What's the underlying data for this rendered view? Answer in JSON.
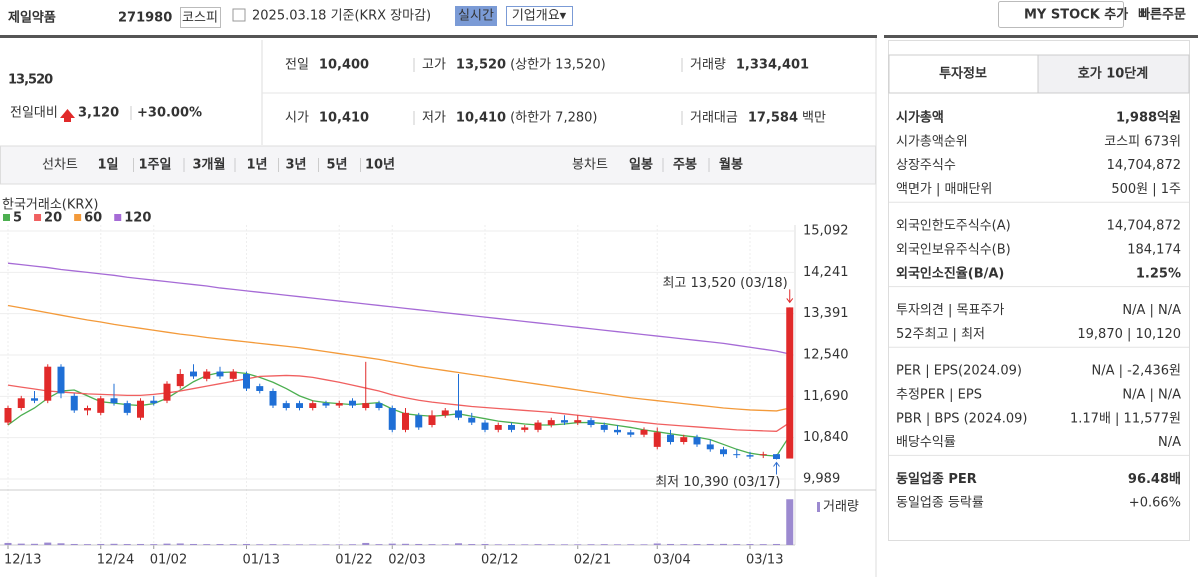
{
  "header": {
    "name": "제일약품",
    "code": "271980",
    "market": "코스피",
    "date": "2025.03.18 기준(KRX 장마감)",
    "realtime": "실시간",
    "overview": "기업개요▾",
    "mystock": "MY STOCK 추가",
    "quick": "빠른주문"
  },
  "quote": {
    "price": "13,520",
    "change_label": "전일대비",
    "change": "3,120",
    "rate": "+30.00%",
    "cells": [
      {
        "label": "전일",
        "value": "10,400"
      },
      {
        "label": "고가",
        "value": "13,520",
        "extra": "(상한가 13,520)",
        "color": "#e12a2a"
      },
      {
        "label": "거래량",
        "value": "1,334,401"
      },
      {
        "label": "시가",
        "value": "10,410",
        "color": "#e12a2a"
      },
      {
        "label": "저가",
        "value": "10,410",
        "extra": "(하한가 7,280)",
        "color": "#e12a2a"
      },
      {
        "label": "거래대금",
        "value": "17,584",
        "extra": "백만"
      }
    ]
  },
  "periods": {
    "label": "선차트",
    "items": [
      "1일",
      "1주일",
      "3개월",
      "1년",
      "3년",
      "5년",
      "10년"
    ]
  },
  "candles": {
    "label": "봉차트",
    "items": [
      "일봉",
      "주봉",
      "월봉"
    ],
    "selected": 0
  },
  "chart_data": {
    "type": "candlestick",
    "source": "한국거래소(KRX)",
    "grid": true,
    "up_color": "#e12a2a",
    "down_color": "#1f6fd6",
    "categories": [
      "12/13",
      null,
      null,
      null,
      null,
      null,
      null,
      "12/24",
      null,
      null,
      null,
      "01/02",
      null,
      null,
      null,
      null,
      null,
      null,
      "01/13",
      null,
      null,
      null,
      null,
      null,
      null,
      "01/22",
      null,
      null,
      null,
      "02/03",
      null,
      null,
      null,
      null,
      null,
      null,
      "02/12",
      null,
      null,
      null,
      null,
      null,
      null,
      "02/21",
      null,
      null,
      null,
      null,
      null,
      "03/04",
      null,
      null,
      null,
      null,
      null,
      null,
      "03/13",
      null,
      null,
      null
    ],
    "open": [
      11150,
      11450,
      11650,
      11600,
      12300,
      11700,
      11400,
      11350,
      11650,
      11550,
      11250,
      11600,
      11600,
      11900,
      12200,
      12050,
      12200,
      12050,
      12150,
      11900,
      11800,
      11550,
      11550,
      11450,
      11550,
      11500,
      11600,
      11450,
      11550,
      11450,
      11000,
      11300,
      11100,
      11300,
      11400,
      11250,
      11150,
      11000,
      11100,
      11000,
      11000,
      11100,
      11200,
      11150,
      11200,
      11100,
      11000,
      10950,
      10900,
      10650,
      10900,
      10750,
      10850,
      10700,
      10600,
      10500,
      10480,
      10480,
      10500,
      10410
    ],
    "high": [
      11500,
      11700,
      11800,
      12350,
      12350,
      11750,
      11500,
      11700,
      11950,
      11600,
      11650,
      11700,
      12000,
      12250,
      12350,
      12250,
      12300,
      12250,
      12200,
      11950,
      11850,
      11600,
      11600,
      11600,
      11600,
      11600,
      11650,
      12400,
      11600,
      11500,
      11450,
      11350,
      11400,
      11450,
      12150,
      11350,
      11200,
      11150,
      11150,
      11100,
      11200,
      11250,
      11300,
      11300,
      11250,
      11150,
      11100,
      11000,
      11050,
      11050,
      11000,
      10900,
      10900,
      10800,
      10650,
      10600,
      10550,
      10550,
      10500,
      13520
    ],
    "low": [
      11100,
      11400,
      11550,
      11550,
      11650,
      11350,
      11300,
      11300,
      11500,
      11300,
      11200,
      11500,
      11550,
      11850,
      12050,
      12000,
      12050,
      12000,
      11800,
      11750,
      11450,
      11400,
      11400,
      11400,
      11450,
      11450,
      11450,
      11400,
      11400,
      10950,
      10950,
      11000,
      11050,
      11250,
      11200,
      11100,
      10950,
      10950,
      10950,
      10950,
      10950,
      11050,
      11100,
      11100,
      11050,
      10950,
      10900,
      10850,
      10850,
      10600,
      10700,
      10700,
      10650,
      10550,
      10450,
      10420,
      10400,
      10420,
      10390,
      10410
    ],
    "close": [
      11450,
      11650,
      11600,
      12300,
      11750,
      11400,
      11450,
      11650,
      11550,
      11350,
      11600,
      11550,
      11950,
      12150,
      12100,
      12200,
      12100,
      12200,
      11850,
      11800,
      11500,
      11450,
      11450,
      11550,
      11500,
      11550,
      11500,
      11550,
      11450,
      11000,
      11350,
      11050,
      11300,
      11400,
      11250,
      11150,
      11000,
      11100,
      11000,
      11050,
      11150,
      11200,
      11150,
      11200,
      11100,
      11000,
      10950,
      10900,
      11000,
      10950,
      10750,
      10850,
      10700,
      10600,
      10500,
      10480,
      10450,
      10500,
      10400,
      13520
    ],
    "ma": [
      {
        "name": "5",
        "color": "#4caf50",
        "values": [
          11100,
          11300,
          11450,
          11650,
          11800,
          11820,
          11700,
          11580,
          11550,
          11520,
          11500,
          11540,
          11650,
          11820,
          11990,
          12120,
          12180,
          12190,
          12160,
          12080,
          11980,
          11850,
          11700,
          11600,
          11560,
          11540,
          11520,
          11540,
          11560,
          11430,
          11330,
          11300,
          11280,
          11300,
          11330,
          11280,
          11230,
          11180,
          11150,
          11120,
          11100,
          11100,
          11120,
          11150,
          11150,
          11130,
          11090,
          11050,
          11000,
          10960,
          10920,
          10880,
          10850,
          10800,
          10700,
          10600,
          10520,
          10480,
          10460,
          10880
        ]
      },
      {
        "name": "20",
        "color": "#f06060",
        "values": [
          11920,
          11880,
          11840,
          11800,
          11780,
          11760,
          11740,
          11730,
          11720,
          11710,
          11710,
          11730,
          11760,
          11800,
          11850,
          11900,
          11950,
          12000,
          12050,
          12100,
          12110,
          12120,
          12110,
          12080,
          12030,
          11980,
          11920,
          11860,
          11800,
          11720,
          11660,
          11610,
          11570,
          11540,
          11510,
          11480,
          11460,
          11440,
          11420,
          11400,
          11380,
          11360,
          11330,
          11300,
          11270,
          11240,
          11210,
          11180,
          11150,
          11120,
          11100,
          11080,
          11060,
          11040,
          11020,
          11000,
          10990,
          10980,
          10970,
          11150
        ]
      },
      {
        "name": "60",
        "color": "#f39a3a",
        "values": [
          13560,
          13510,
          13460,
          13410,
          13360,
          13310,
          13260,
          13220,
          13170,
          13130,
          13090,
          13050,
          13010,
          12970,
          12940,
          12900,
          12870,
          12840,
          12810,
          12780,
          12750,
          12720,
          12690,
          12650,
          12610,
          12570,
          12530,
          12490,
          12450,
          12400,
          12350,
          12300,
          12260,
          12220,
          12180,
          12140,
          12100,
          12060,
          12020,
          11980,
          11940,
          11900,
          11860,
          11820,
          11780,
          11740,
          11700,
          11660,
          11630,
          11600,
          11570,
          11540,
          11510,
          11480,
          11450,
          11430,
          11410,
          11400,
          11390,
          11450
        ]
      },
      {
        "name": "120",
        "color": "#a66bd6",
        "values": [
          14430,
          14400,
          14370,
          14340,
          14300,
          14270,
          14240,
          14210,
          14180,
          14140,
          14110,
          14080,
          14050,
          14020,
          13990,
          13960,
          13920,
          13890,
          13860,
          13830,
          13800,
          13770,
          13740,
          13710,
          13680,
          13650,
          13620,
          13590,
          13560,
          13530,
          13500,
          13470,
          13440,
          13410,
          13380,
          13350,
          13320,
          13290,
          13260,
          13230,
          13200,
          13170,
          13140,
          13110,
          13080,
          13050,
          13020,
          12990,
          12960,
          12930,
          12900,
          12870,
          12840,
          12810,
          12780,
          12740,
          12700,
          12660,
          12620,
          12560
        ]
      }
    ],
    "volume": {
      "label": "거래량",
      "color": "#9c8ad0",
      "ylim": [
        0,
        1400000
      ],
      "values": [
        60000,
        40000,
        35000,
        70000,
        50000,
        30000,
        25000,
        30000,
        35000,
        28000,
        30000,
        25000,
        40000,
        45000,
        30000,
        25000,
        28000,
        26000,
        30000,
        22000,
        25000,
        20000,
        20000,
        18000,
        20000,
        18000,
        22000,
        60000,
        25000,
        40000,
        35000,
        30000,
        25000,
        22000,
        50000,
        28000,
        30000,
        20000,
        22000,
        20000,
        24000,
        22000,
        20000,
        20000,
        22000,
        25000,
        20000,
        22000,
        20000,
        45000,
        30000,
        25000,
        28000,
        30000,
        32000,
        26000,
        28000,
        25000,
        30000,
        1334401
      ]
    },
    "ylim": [
      9989,
      15092
    ],
    "yticks": [
      {
        "value": 9989,
        "label": "9,989"
      },
      {
        "value": 10840,
        "label": "10,840"
      },
      {
        "value": 11690,
        "label": "11,690"
      },
      {
        "value": 12540,
        "label": "12,540"
      },
      {
        "value": 13391,
        "label": "13,391"
      },
      {
        "value": 14241,
        "label": "14,241"
      },
      {
        "value": 15092,
        "label": "15,092"
      }
    ],
    "annotations": {
      "high": "최고 13,520 (03/18)",
      "low": "최저 10,390 (03/17)"
    }
  },
  "info": {
    "tabs": [
      "투자정보",
      "호가 10단계"
    ],
    "sections": [
      [
        {
          "label": "시가총액",
          "value": "1,988억원",
          "bold": true
        },
        {
          "label": "시가총액순위",
          "value": "코스피 673위"
        },
        {
          "label": "상장주식수",
          "value": "14,704,872"
        },
        {
          "label": "액면가 | 매매단위",
          "value": "500원 | 1주"
        }
      ],
      [
        {
          "label": "외국인한도주식수(A)",
          "value": "14,704,872"
        },
        {
          "label": "외국인보유주식수(B)",
          "value": "184,174"
        },
        {
          "label": "외국인소진율(B/A)",
          "value": "1.25%",
          "bold": true
        }
      ],
      [
        {
          "label": "투자의견 | 목표주가",
          "value": "N/A | N/A"
        },
        {
          "label": "52주최고 | 최저",
          "value": "19,870 | 10,120"
        }
      ],
      [
        {
          "label": "PER | EPS(2024.09)",
          "value": "N/A | -2,436원"
        },
        {
          "label": "추정PER | EPS",
          "value": "N/A | N/A"
        },
        {
          "label": "PBR | BPS (2024.09)",
          "value": "1.17배 | 11,577원"
        },
        {
          "label": "배당수익률",
          "value": "N/A"
        }
      ],
      [
        {
          "label": "동일업종 PER",
          "value": "96.48배",
          "bold": true
        },
        {
          "label": "동일업종 등락률",
          "value": "+0.66%",
          "color": "#e12a2a"
        }
      ]
    ]
  }
}
